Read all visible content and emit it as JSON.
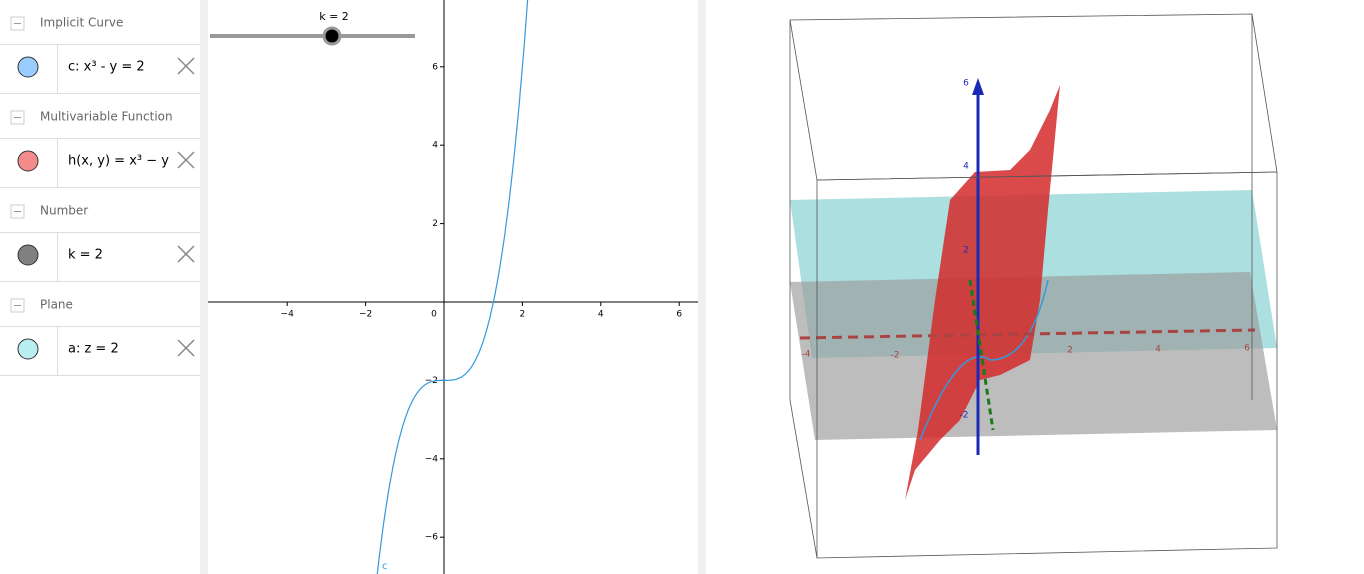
{
  "algebra": {
    "groups": [
      {
        "title": "Implicit Curve",
        "item": "c: x³ - y = 2",
        "color": "#99ccff"
      },
      {
        "title": "Multivariable Function",
        "item": "h(x, y) = x³ − y",
        "color": "#f48c8c"
      },
      {
        "title": "Number",
        "item": "k = 2",
        "color": "#808080"
      },
      {
        "title": "Plane",
        "item": "a: z = 2",
        "color": "#b8eef0"
      }
    ]
  },
  "graphics": {
    "slider_label": "k = 2",
    "slider_value": 2,
    "curve_label": "c",
    "curve_color": "#3399dd",
    "xticks": [
      {
        "value": -4,
        "label": "−4"
      },
      {
        "value": -2,
        "label": "−2"
      },
      0,
      2,
      4,
      6
    ],
    "yticks": [
      6,
      4,
      2,
      {
        "value": -2,
        "label": "−2"
      },
      {
        "value": -4,
        "label": "−4"
      },
      {
        "value": -6,
        "label": "−6"
      }
    ]
  },
  "graphics3d": {
    "z_labels": [
      "6",
      "4",
      "2",
      "-2"
    ],
    "x_labels": [
      "-4",
      "-2",
      "2",
      "4",
      "6"
    ]
  }
}
